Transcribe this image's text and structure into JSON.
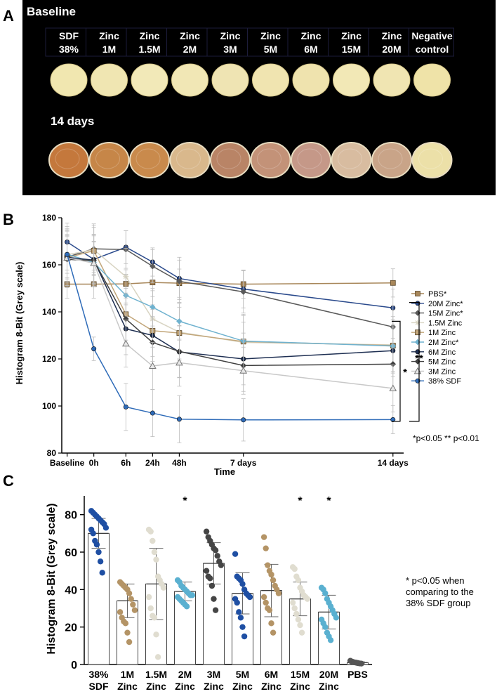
{
  "panel_labels": [
    "A",
    "B",
    "C"
  ],
  "panel_a": {
    "baseline_label": "Baseline",
    "day14_label": "14 days",
    "samples": [
      {
        "line1": "SDF",
        "line2": "38%"
      },
      {
        "line1": "Zinc",
        "line2": "1M"
      },
      {
        "line1": "Zinc",
        "line2": "1.5M"
      },
      {
        "line1": "Zinc",
        "line2": "2M"
      },
      {
        "line1": "Zinc",
        "line2": "3M"
      },
      {
        "line1": "Zinc",
        "line2": "5M"
      },
      {
        "line1": "Zinc",
        "line2": "6M"
      },
      {
        "line1": "Zinc",
        "line2": "15M"
      },
      {
        "line1": "Zinc",
        "line2": "20M"
      },
      {
        "line1": "Negative",
        "line2": "control"
      }
    ],
    "baseline_colors": [
      "#f1e7b0",
      "#f0e6b2",
      "#f2e9b8",
      "#f1e7b5",
      "#efe4b3",
      "#f0e4b0",
      "#efe3ae",
      "#f2e8b6",
      "#f0e5b2",
      "#efe3a8"
    ],
    "day14_colors": [
      "#c4783c",
      "#c68648",
      "#c98a4c",
      "#d9b88c",
      "#b98466",
      "#c39278",
      "#c59888",
      "#d8bca0",
      "#c9a488",
      "#ece0a8"
    ]
  },
  "chart_data": [
    {
      "type": "line",
      "title": "",
      "xlabel": "Time",
      "ylabel": "Histogram 8-Bit (Grey scale)",
      "ylim": [
        80,
        180
      ],
      "yticks": [
        80,
        100,
        120,
        140,
        160,
        180
      ],
      "x_positions": [
        0,
        1,
        2.2,
        3.2,
        4.2,
        6.6,
        12.2
      ],
      "x_labels": [
        "Baseline",
        "0h",
        "6h",
        "24h",
        "48h",
        "7 days",
        "14 days"
      ],
      "series": [
        {
          "name": "PBS*",
          "color": "#a8875a",
          "marker": "square",
          "values": [
            151.8,
            151.8,
            151.9,
            152.5,
            152.2,
            151.8,
            152.3
          ],
          "errors": [
            6,
            6,
            6,
            6,
            6,
            6,
            6
          ]
        },
        {
          "name": "20M Zinc*",
          "color": "#2a4a8c",
          "marker": "circle",
          "values": [
            169.7,
            162.3,
            167.5,
            161.2,
            154.2,
            149.7,
            141.7
          ],
          "errors": [
            8,
            10,
            7,
            6,
            9,
            8,
            8
          ]
        },
        {
          "name": "15M Zinc*",
          "color": "#5a5a5a",
          "marker": "diamond",
          "values": [
            163.3,
            166.8,
            166.5,
            159.4,
            153.0,
            148.5,
            133.6
          ],
          "errors": [
            12,
            10,
            8,
            7,
            9,
            9,
            9
          ]
        },
        {
          "name": "1.5M Zinc",
          "color": "#d8d4c2",
          "marker": "star",
          "values": [
            164.3,
            166.4,
            155.0,
            137.0,
            131.4,
            127.0,
            126.0
          ],
          "errors": [
            12,
            11,
            12,
            12,
            12,
            12,
            12
          ]
        },
        {
          "name": "1M Zinc",
          "color": "#c2a67a",
          "marker": "square",
          "values": [
            163.0,
            166.0,
            139.0,
            132.0,
            131.0,
            127.4,
            125.7
          ],
          "errors": [
            9,
            10,
            11,
            11,
            11,
            11,
            11
          ]
        },
        {
          "name": "2M Zinc*",
          "color": "#6fb2cf",
          "marker": "diamond",
          "values": [
            164.5,
            161.0,
            147.0,
            142.0,
            136.0,
            127.6,
            125.5
          ],
          "errors": [
            10,
            9,
            9,
            8,
            8,
            8,
            8
          ]
        },
        {
          "name": "6M Zinc",
          "color": "#1e2f52",
          "marker": "circle",
          "values": [
            163.2,
            162.0,
            132.8,
            130.0,
            123.0,
            120.0,
            123.5
          ],
          "errors": [
            12,
            11,
            11,
            11,
            11,
            11,
            11
          ]
        },
        {
          "name": "5M Zinc",
          "color": "#404040",
          "marker": "diamond",
          "values": [
            162.3,
            161.8,
            137.0,
            127.0,
            123.2,
            117.2,
            117.8
          ],
          "errors": [
            12,
            11,
            11,
            11,
            11,
            11,
            11
          ]
        },
        {
          "name": "3M Zinc",
          "color": "#c8c8c8",
          "marker": "triangle",
          "values": [
            163.0,
            160.7,
            126.5,
            117.0,
            118.4,
            115.0,
            107.5
          ],
          "errors": [
            10,
            9,
            10,
            10,
            10,
            10,
            10
          ]
        },
        {
          "name": "38% SDF",
          "color": "#2e6bb8",
          "marker": "circle",
          "values": [
            164.4,
            124.3,
            99.6,
            97.0,
            94.4,
            94.1,
            94.2
          ],
          "errors": [
            8,
            5,
            10,
            10,
            10,
            9,
            6
          ]
        }
      ],
      "significance": [
        "*",
        "**"
      ],
      "pvalue_note": "*p<0.05  ** p<0.01"
    },
    {
      "type": "bar",
      "title": "",
      "xlabel": "",
      "ylabel": "Histogram 8-Bit (Grey scale)",
      "ylim": [
        0,
        90
      ],
      "yticks": [
        0,
        20,
        40,
        60,
        80
      ],
      "categories": [
        {
          "line1": "38%",
          "line2": "SDF"
        },
        {
          "line1": "1M",
          "line2": "Zinc"
        },
        {
          "line1": "1.5M",
          "line2": "Zinc"
        },
        {
          "line1": "2M",
          "line2": "Zinc"
        },
        {
          "line1": "3M",
          "line2": "Zinc"
        },
        {
          "line1": "5M",
          "line2": "Zinc"
        },
        {
          "line1": "6M",
          "line2": "Zinc"
        },
        {
          "line1": "15M",
          "line2": "Zinc"
        },
        {
          "line1": "20M",
          "line2": "Zinc"
        },
        {
          "line1": "PBS",
          "line2": ""
        }
      ],
      "means": [
        70,
        34,
        43,
        39,
        54,
        38,
        39.5,
        35,
        28,
        1
      ],
      "sd": [
        8,
        9,
        19,
        5,
        11,
        11,
        14,
        9,
        9,
        0.5
      ],
      "colors": [
        "#1f4fa3",
        "#b49466",
        "#e0ddd0",
        "#5ab0d0",
        "#454545",
        "#1f4fa3",
        "#b49466",
        "#e0ddd0",
        "#5ab0d0",
        "#555555"
      ],
      "stars": [
        "",
        "",
        "",
        "*",
        "",
        "",
        "",
        "*",
        "*",
        ""
      ],
      "points": [
        [
          82,
          81,
          80,
          79,
          78,
          77,
          76,
          75,
          73,
          72,
          70,
          66,
          64,
          60,
          55,
          49
        ],
        [
          44,
          43,
          42,
          41,
          40,
          38,
          35,
          32,
          29,
          28,
          25,
          23,
          22,
          17,
          12
        ],
        [
          72,
          71,
          66,
          60,
          56,
          47,
          45,
          43,
          41,
          36,
          30,
          26,
          25,
          16,
          4
        ],
        [
          45,
          44,
          42,
          41,
          40,
          39,
          38,
          37,
          37,
          36,
          35,
          34,
          33,
          32,
          31
        ],
        [
          71,
          68,
          66,
          64,
          62,
          61,
          58,
          55,
          53,
          50,
          47,
          46,
          42,
          35,
          29
        ],
        [
          59,
          47,
          46,
          45,
          43,
          40,
          38,
          37,
          36,
          35,
          33,
          28,
          25,
          20,
          15
        ],
        [
          68,
          62,
          53,
          50,
          48,
          45,
          42,
          40,
          38,
          36,
          33,
          30,
          29,
          22,
          17
        ],
        [
          52,
          51,
          47,
          45,
          41,
          39,
          37,
          36,
          35,
          33,
          30,
          27,
          24,
          21,
          17
        ],
        [
          41,
          40,
          38,
          35,
          33,
          31,
          29,
          27,
          25,
          24,
          22,
          20,
          17,
          15,
          13
        ],
        [
          2,
          1.5,
          1.2,
          1,
          0.8,
          0.6,
          0.5
        ]
      ],
      "note": "* p<0.05 when\ncomparing to the\n38% SDF group"
    }
  ]
}
